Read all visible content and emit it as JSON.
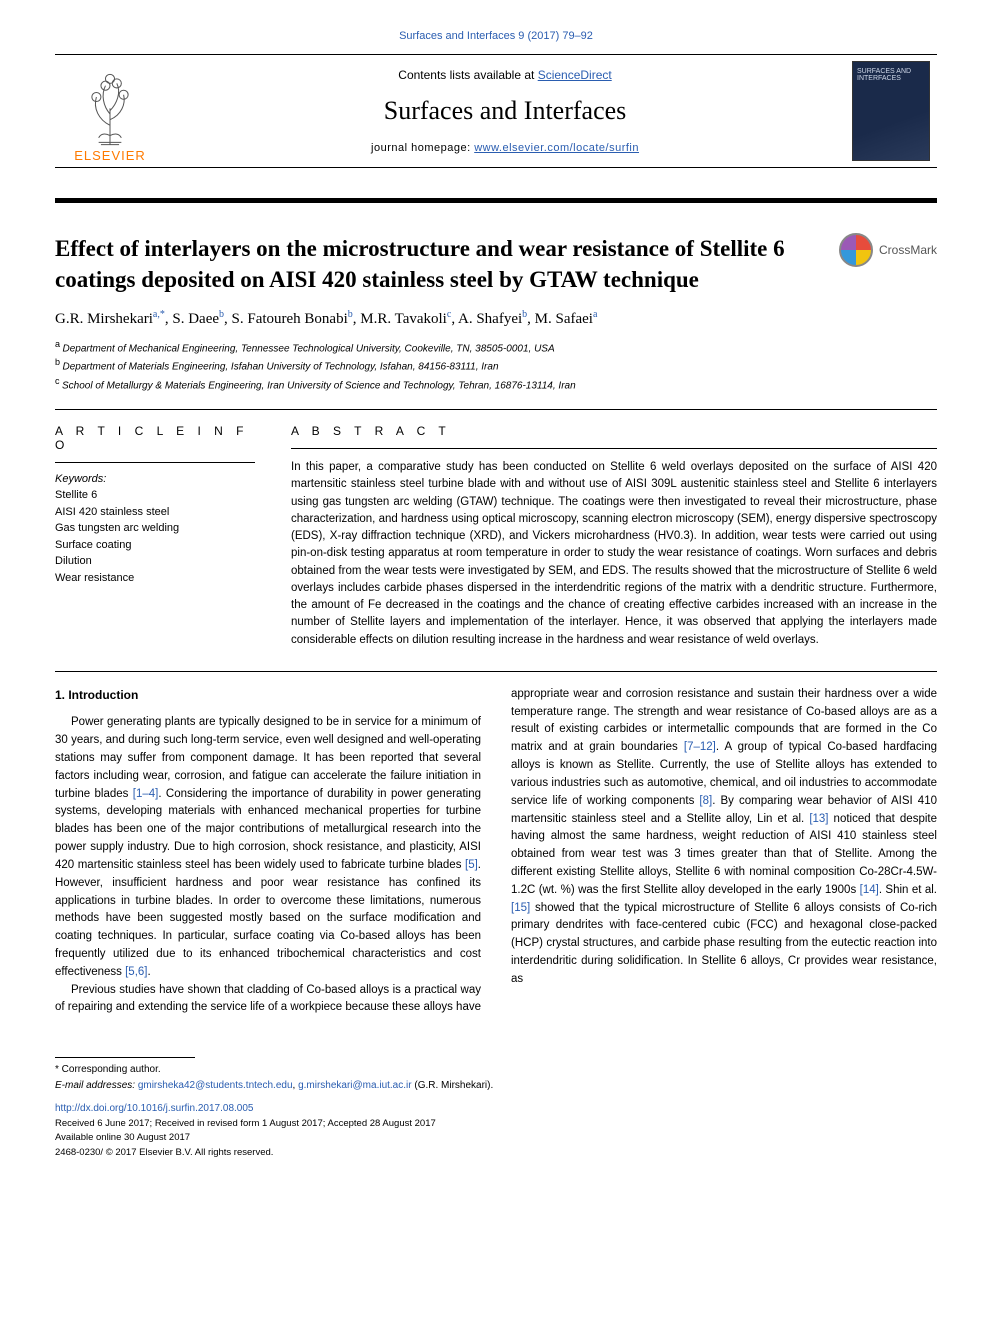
{
  "citation": "Surfaces and Interfaces 9 (2017) 79–92",
  "header": {
    "contents_prefix": "Contents lists available at ",
    "contents_link": "ScienceDirect",
    "journal_title": "Surfaces and Interfaces",
    "homepage_prefix": "journal homepage: ",
    "homepage_link": "www.elsevier.com/locate/surfin",
    "publisher_logo_text": "ELSEVIER",
    "cover_label": "SURFACES AND INTERFACES"
  },
  "article": {
    "title": "Effect of interlayers on the microstructure and wear resistance of Stellite 6 coatings deposited on AISI 420 stainless steel by GTAW technique",
    "crossmark_label": "CrossMark"
  },
  "authors_line": "G.R. Mirshekariᵃ˒*, S. Daeeᵇ, S. Fatoureh Bonabiᵇ, M.R. Tavakoliᶜ, A. Shafyeiᵇ, M. Safaeiᵃ",
  "authors_html_parts": [
    {
      "name": "G.R. Mirshekari",
      "sup": "a,",
      "star": "*"
    },
    {
      "name": ", S. Daee",
      "sup": "b"
    },
    {
      "name": ", S. Fatoureh Bonabi",
      "sup": "b"
    },
    {
      "name": ", M.R. Tavakoli",
      "sup": "c"
    },
    {
      "name": ", A. Shafyei",
      "sup": "b"
    },
    {
      "name": ", M. Safaei",
      "sup": "a"
    }
  ],
  "affiliations": [
    {
      "key": "a",
      "text": "Department of Mechanical Engineering, Tennessee Technological University, Cookeville, TN, 38505-0001, USA"
    },
    {
      "key": "b",
      "text": "Department of Materials Engineering, Isfahan University of Technology, Isfahan, 84156-83111, Iran"
    },
    {
      "key": "c",
      "text": "School of Metallurgy & Materials Engineering, Iran University of Science and Technology, Tehran, 16876-13114, Iran"
    }
  ],
  "article_info": {
    "heading": "A R T I C L E   I N F O",
    "keywords_label": "Keywords:",
    "keywords": [
      "Stellite 6",
      "AISI 420 stainless steel",
      "Gas tungsten arc welding",
      "Surface coating",
      "Dilution",
      "Wear resistance"
    ]
  },
  "abstract": {
    "heading": "A B S T R A C T",
    "text": "In this paper, a comparative study has been conducted on Stellite 6 weld overlays deposited on the surface of AISI 420 martensitic stainless steel turbine blade with and without use of AISI 309L austenitic stainless steel and Stellite 6 interlayers using gas tungsten arc welding (GTAW) technique. The coatings were then investigated to reveal their microstructure, phase characterization, and hardness using optical microscopy, scanning electron microscopy (SEM), energy dispersive spectroscopy (EDS), X-ray diffraction technique (XRD), and Vickers microhardness (HV0.3). In addition, wear tests were carried out using pin-on-disk testing apparatus at room temperature in order to study the wear resistance of coatings. Worn surfaces and debris obtained from the wear tests were investigated by SEM, and EDS. The results showed that the microstructure of Stellite 6 weld overlays includes carbide phases dispersed in the interdendritic regions of the matrix with a dendritic structure. Furthermore, the amount of Fe decreased in the coatings and the chance of creating effective carbides increased with an increase in the number of Stellite layers and implementation of the interlayer. Hence, it was observed that applying the interlayers made considerable effects on dilution resulting increase in the hardness and wear resistance of weld overlays."
  },
  "intro": {
    "heading": "1. Introduction",
    "p1_a": "Power generating plants are typically designed to be in service for a minimum of 30 years, and during such long-term service, even well designed and well-operating stations may suffer from component damage. It has been reported that several factors including wear, corrosion, and fatigue can accelerate the failure initiation in turbine blades ",
    "p1_ref1": "[1–4]",
    "p1_b": ". Considering the importance of durability in power generating systems, developing materials with enhanced mechanical properties for turbine blades has been one of the major contributions of metallurgical research into the power supply industry. Due to high corrosion, shock resistance, and plasticity, AISI 420 martensitic stainless steel has been widely used to fabricate turbine blades ",
    "p1_ref2": "[5]",
    "p1_c": ". However, insufficient hardness and poor wear resistance has confined its applications in turbine blades. In order to overcome these limitations, numerous methods have been suggested mostly based on the surface modification and coating techniques. In particular, surface coating via Co-based alloys has been frequently utilized due to its enhanced tribochemical characteristics and cost effectiveness ",
    "p1_ref3": "[5,6]",
    "p1_d": ".",
    "p2_a": "Previous studies have shown that cladding of Co-based alloys is a practical way of repairing and extending the service life of a workpiece because these alloys have appropriate wear and corrosion resistance and sustain their hardness over a wide temperature range. The strength and wear resistance of Co-based alloys are as a result of existing carbides or intermetallic compounds that are formed in the Co matrix and at grain boundaries ",
    "p2_ref1": "[7–12]",
    "p2_b": ". A group of typical Co-based hardfacing alloys is known as Stellite. Currently, the use of Stellite alloys has extended to various industries such as automotive, chemical, and oil industries to accommodate service life of working components ",
    "p2_ref2": "[8]",
    "p2_c": ". By comparing wear behavior of AISI 410 martensitic stainless steel and a Stellite alloy, Lin et al. ",
    "p2_ref3": "[13]",
    "p2_d": " noticed that despite having almost the same hardness, weight reduction of AISI 410 stainless steel obtained from wear test was 3 times greater than that of Stellite. Among the different existing Stellite alloys, Stellite 6 with nominal composition Co-28Cr-4.5W-1.2C (wt. %) was the first Stellite alloy developed in the early 1900s ",
    "p2_ref4": "[14]",
    "p2_e": ". Shin et al. ",
    "p2_ref5": "[15]",
    "p2_f": " showed that the typical microstructure of Stellite 6 alloys consists of Co-rich primary dendrites with face-centered cubic (FCC) and hexagonal close-packed (HCP) crystal structures, and carbide phase resulting from the eutectic reaction into interdendritic during solidification. In Stellite 6 alloys, Cr provides wear resistance, as"
  },
  "footer": {
    "corresponding_label": "* Corresponding author.",
    "email_label": "E-mail addresses: ",
    "emails": [
      "gmirsheka42@students.tntech.edu",
      "g.mirshekari@ma.iut.ac.ir"
    ],
    "email_tail": " (G.R. Mirshekari).",
    "doi": "http://dx.doi.org/10.1016/j.surfin.2017.08.005",
    "dates": "Received 6 June 2017; Received in revised form 1 August 2017; Accepted 28 August 2017",
    "available": "Available online 30 August 2017",
    "copyright": "2468-0230/ © 2017 Elsevier B.V. All rights reserved."
  },
  "colors": {
    "link": "#2a5db0",
    "elsevier_orange": "#ff7a00"
  }
}
